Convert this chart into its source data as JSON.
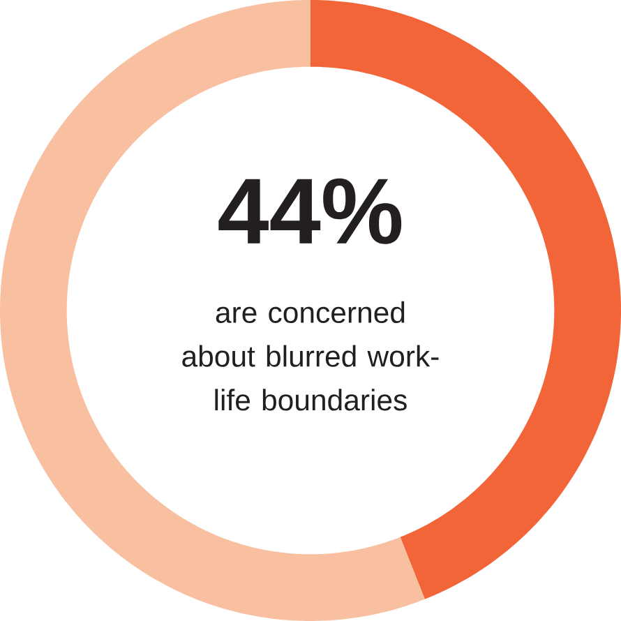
{
  "chart_data": {
    "type": "donut",
    "categories": [
      null,
      null
    ],
    "values": [
      44,
      56
    ],
    "colors": [
      "#f26539",
      "#f8c0a0"
    ],
    "value_labels": [
      "44%",
      null
    ],
    "annotations": [
      "are concerned about blurred work-life boundaries"
    ]
  }
}
